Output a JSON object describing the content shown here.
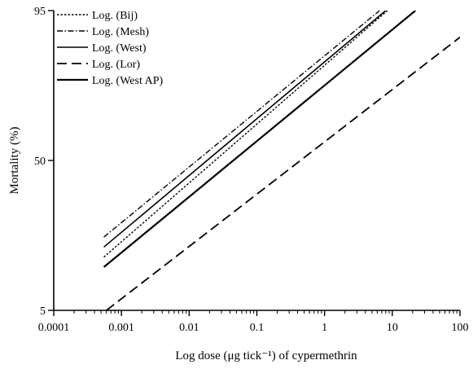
{
  "chart_data": {
    "type": "line",
    "xlabel": "Log dose (μg tick⁻¹) of cypermethrin",
    "ylabel": "Mortality (%)",
    "x_scale": "log",
    "xlim": [
      0.0001,
      100
    ],
    "ylim": [
      5,
      95
    ],
    "x_ticks": [
      "0.0001",
      "0.001",
      "0.01",
      "0.1",
      "1",
      "10",
      "100"
    ],
    "y_ticks": [
      "5",
      "50",
      "95"
    ],
    "legend_position": "top-left",
    "series": [
      {
        "name": "Log. (Bij)",
        "style": "dotted",
        "color": "#000000",
        "points": [
          {
            "x": 0.00055,
            "y": 21
          },
          {
            "x": 8.5,
            "y": 95
          }
        ]
      },
      {
        "name": "Log. (Mesh)",
        "style": "dashdot",
        "color": "#000000",
        "points": [
          {
            "x": 0.00055,
            "y": 27
          },
          {
            "x": 6.5,
            "y": 95
          }
        ]
      },
      {
        "name": "Log. (West)",
        "style": "solid-thin",
        "color": "#000000",
        "points": [
          {
            "x": 0.00055,
            "y": 24
          },
          {
            "x": 8.0,
            "y": 95
          }
        ]
      },
      {
        "name": "Log. (Lor)",
        "style": "dashed",
        "color": "#000000",
        "points": [
          {
            "x": 0.0006,
            "y": 5
          },
          {
            "x": 100,
            "y": 87
          }
        ]
      },
      {
        "name": "Log. (West AP)",
        "style": "solid-thick",
        "color": "#000000",
        "points": [
          {
            "x": 0.00055,
            "y": 18
          },
          {
            "x": 22,
            "y": 95
          }
        ]
      }
    ]
  }
}
